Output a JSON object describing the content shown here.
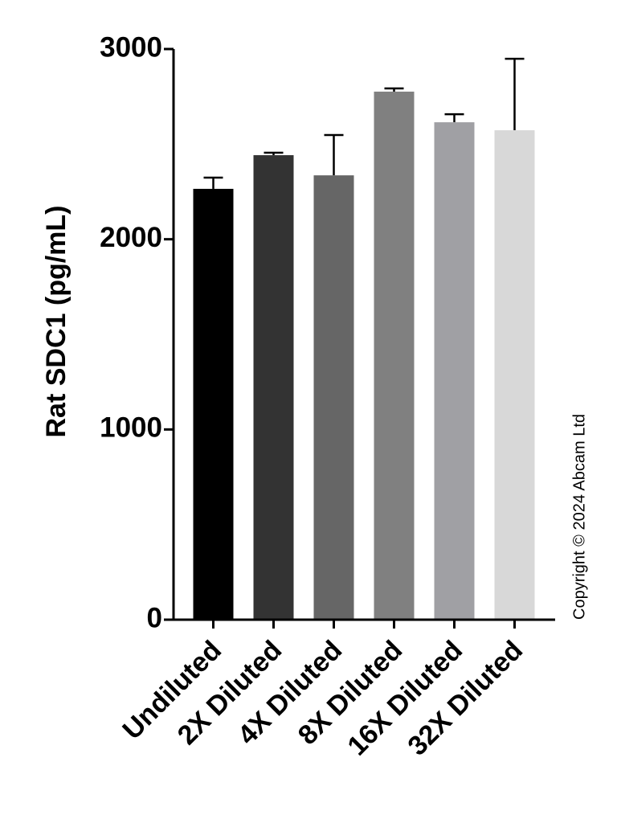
{
  "chart_data": {
    "type": "bar",
    "y_label": "Rat SDC1 (pg/mL)",
    "categories": [
      "Undiluted",
      "2X Diluted",
      "4X Diluted",
      "8X Diluted",
      "16X Diluted",
      "32X Diluted"
    ],
    "values": [
      2265,
      2442,
      2336,
      2776,
      2615,
      2573
    ],
    "errors": [
      59,
      13,
      212,
      17,
      42,
      376
    ],
    "colors": [
      "#000000",
      "#333333",
      "#666666",
      "#808080",
      "#a0a0a4",
      "#d8d8d8"
    ],
    "ylim": [
      0,
      3000
    ],
    "yticks": [
      0,
      1000,
      2000,
      3000
    ],
    "copyright": "Copyright © 2024 Abcam Ltd"
  }
}
